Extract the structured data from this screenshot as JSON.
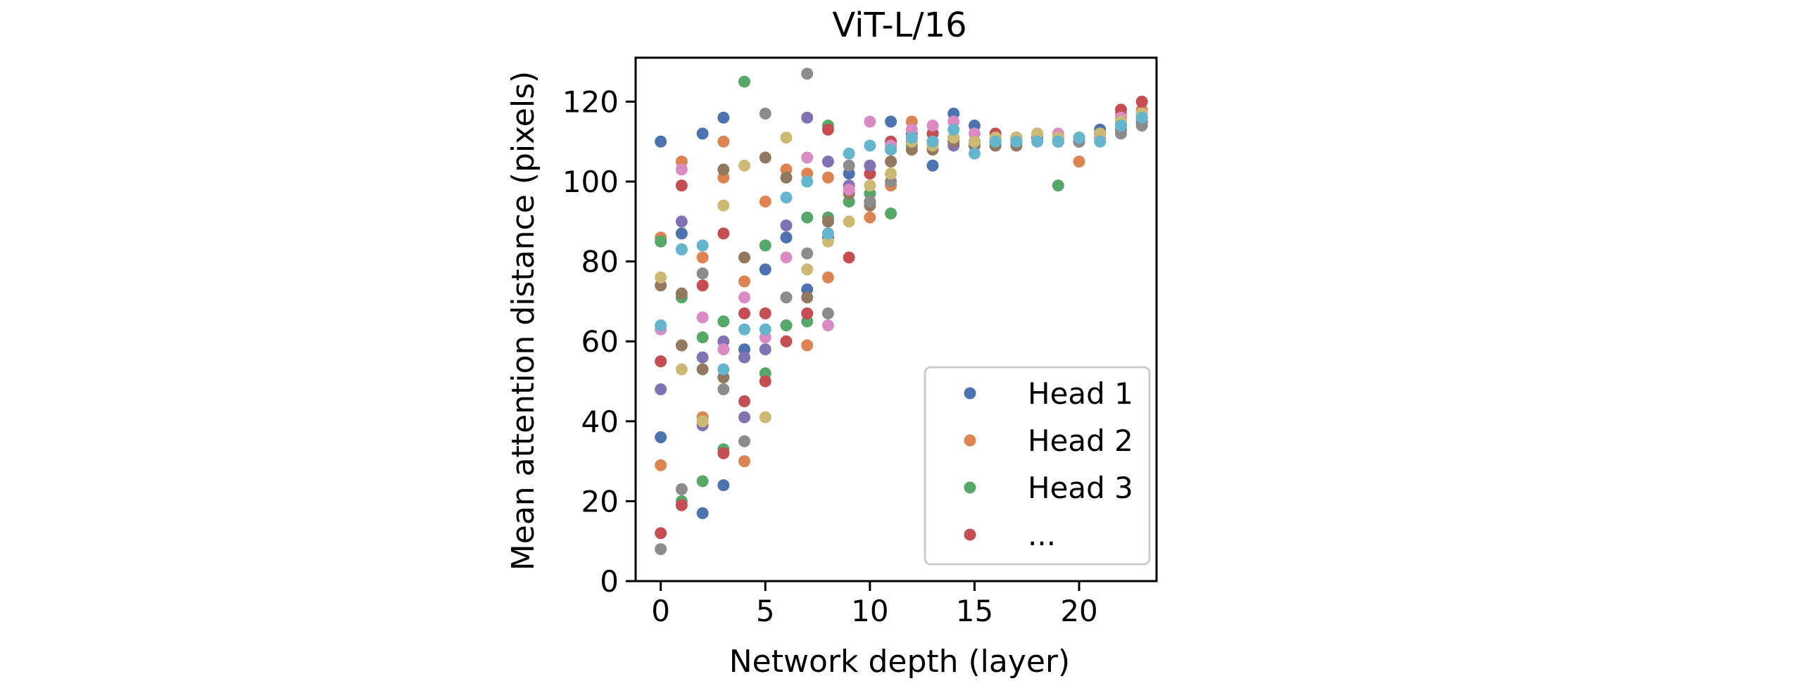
{
  "chart_data": {
    "type": "scatter",
    "title": "ViT-L/16",
    "xlabel": "Network depth (layer)",
    "ylabel": "Mean attention distance (pixels)",
    "xlim": [
      -1.2,
      23.7
    ],
    "ylim": [
      0,
      131
    ],
    "xticks": [
      0,
      5,
      10,
      15,
      20
    ],
    "yticks": [
      0,
      20,
      40,
      60,
      80,
      100,
      120
    ],
    "grid": false,
    "legend_position": "lower-right",
    "legend": [
      "Head 1",
      "Head 2",
      "Head 3",
      "..."
    ],
    "colors": [
      "#4c72b0",
      "#dd8452",
      "#55a868",
      "#c44e52",
      "#8172b3",
      "#937860",
      "#da8bc3",
      "#8c8c8c",
      "#ccb974",
      "#64b5cd"
    ],
    "series": [
      {
        "name": "Head 1",
        "color": "#4c72b0",
        "x": [
          0,
          0,
          1,
          1,
          2,
          2,
          3,
          3,
          4,
          5,
          6,
          7,
          8,
          9,
          10,
          11,
          12,
          13,
          14,
          15,
          16,
          17,
          18,
          19,
          20,
          21,
          22,
          23
        ],
        "y": [
          110,
          36,
          87,
          83,
          112,
          17,
          116,
          24,
          58,
          78,
          86,
          73,
          86,
          102,
          95,
          115,
          110,
          104,
          117,
          114,
          111,
          111,
          111,
          111,
          111,
          113,
          114,
          116
        ]
      },
      {
        "name": "Head 2",
        "color": "#dd8452",
        "x": [
          0,
          0,
          1,
          2,
          2,
          3,
          3,
          4,
          4,
          5,
          6,
          7,
          7,
          8,
          8,
          9,
          10,
          11,
          12,
          13,
          14,
          15,
          16,
          17,
          18,
          19,
          20,
          21,
          22,
          23
        ],
        "y": [
          86,
          29,
          105,
          81,
          41,
          110,
          101,
          75,
          30,
          95,
          103,
          59,
          102,
          76,
          101,
          95,
          91,
          99,
          115,
          112,
          111,
          109,
          109,
          109,
          112,
          110,
          105,
          112,
          117,
          118
        ]
      },
      {
        "name": "Head 3",
        "color": "#55a868",
        "x": [
          0,
          1,
          1,
          2,
          2,
          3,
          3,
          4,
          5,
          5,
          6,
          7,
          7,
          8,
          8,
          9,
          10,
          11,
          12,
          13,
          14,
          15,
          16,
          17,
          18,
          19,
          20,
          21,
          22,
          23
        ],
        "y": [
          85,
          20,
          71,
          61,
          25,
          65,
          33,
          125,
          84,
          52,
          64,
          91,
          65,
          114,
          91,
          95,
          97,
          92,
          109,
          110,
          111,
          110,
          110,
          110,
          111,
          99,
          110,
          111,
          115,
          115
        ]
      },
      {
        "name": "...",
        "color": "#c44e52",
        "x": [
          0,
          0,
          1,
          1,
          2,
          3,
          3,
          4,
          4,
          5,
          5,
          6,
          7,
          8,
          9,
          10,
          11,
          12,
          13,
          14,
          15,
          16,
          17,
          18,
          19,
          20,
          21,
          22,
          23
        ],
        "y": [
          55,
          12,
          99,
          19,
          74,
          87,
          32,
          67,
          45,
          67,
          50,
          60,
          67,
          113,
          81,
          102,
          110,
          112,
          112,
          110,
          110,
          112,
          111,
          111,
          111,
          111,
          112,
          118,
          120
        ]
      },
      {
        "name": "",
        "color": "#8172b3",
        "x": [
          0,
          1,
          2,
          2,
          3,
          4,
          4,
          5,
          6,
          7,
          8,
          9,
          10,
          11,
          12,
          13,
          14,
          15,
          16,
          17,
          18,
          19,
          20,
          21,
          22,
          23
        ],
        "y": [
          48,
          90,
          56,
          39,
          60,
          56,
          41,
          58,
          89,
          116,
          105,
          99,
          104,
          108,
          111,
          110,
          109,
          110,
          110,
          111,
          111,
          110,
          110,
          112,
          115,
          116
        ]
      },
      {
        "name": "",
        "color": "#937860",
        "x": [
          0,
          1,
          1,
          2,
          3,
          3,
          4,
          5,
          6,
          7,
          8,
          9,
          10,
          11,
          12,
          13,
          14,
          15,
          16,
          17,
          18,
          19,
          20,
          21,
          22,
          23
        ],
        "y": [
          74,
          72,
          59,
          53,
          103,
          51,
          81,
          106,
          101,
          71,
          90,
          97,
          94,
          105,
          108,
          108,
          110,
          109,
          109,
          109,
          111,
          111,
          111,
          112,
          113,
          115
        ]
      },
      {
        "name": "",
        "color": "#da8bc3",
        "x": [
          0,
          1,
          2,
          3,
          4,
          5,
          6,
          7,
          8,
          9,
          10,
          11,
          12,
          13,
          14,
          15,
          16,
          17,
          18,
          19,
          20,
          21,
          22,
          23
        ],
        "y": [
          63,
          103,
          66,
          58,
          71,
          61,
          81,
          106,
          64,
          98,
          115,
          109,
          113,
          114,
          115,
          112,
          111,
          110,
          112,
          112,
          111,
          111,
          116,
          117
        ]
      },
      {
        "name": "",
        "color": "#8c8c8c",
        "x": [
          0,
          1,
          2,
          3,
          4,
          5,
          6,
          7,
          7,
          8,
          9,
          10,
          11,
          12,
          13,
          14,
          15,
          16,
          17,
          18,
          19,
          20,
          21,
          22,
          23
        ],
        "y": [
          8,
          23,
          77,
          48,
          35,
          117,
          71,
          127,
          82,
          67,
          104,
          95,
          100,
          110,
          110,
          111,
          110,
          110,
          110,
          111,
          110,
          110,
          112,
          112,
          114
        ]
      },
      {
        "name": "",
        "color": "#ccb974",
        "x": [
          0,
          1,
          2,
          3,
          4,
          5,
          6,
          7,
          8,
          9,
          10,
          11,
          12,
          13,
          14,
          15,
          16,
          17,
          18,
          19,
          20,
          21,
          22,
          23
        ],
        "y": [
          76,
          53,
          40,
          94,
          104,
          41,
          111,
          78,
          85,
          90,
          99,
          102,
          110,
          109,
          111,
          110,
          111,
          111,
          112,
          111,
          111,
          112,
          115,
          117
        ]
      },
      {
        "name": "",
        "color": "#64b5cd",
        "x": [
          0,
          1,
          2,
          3,
          4,
          5,
          6,
          7,
          8,
          9,
          10,
          11,
          12,
          13,
          14,
          15,
          16,
          17,
          18,
          19,
          20,
          21,
          22,
          23
        ],
        "y": [
          64,
          83,
          84,
          53,
          63,
          63,
          96,
          100,
          87,
          107,
          109,
          108,
          111,
          110,
          113,
          107,
          110,
          110,
          110,
          110,
          111,
          110,
          114,
          116
        ]
      }
    ]
  }
}
